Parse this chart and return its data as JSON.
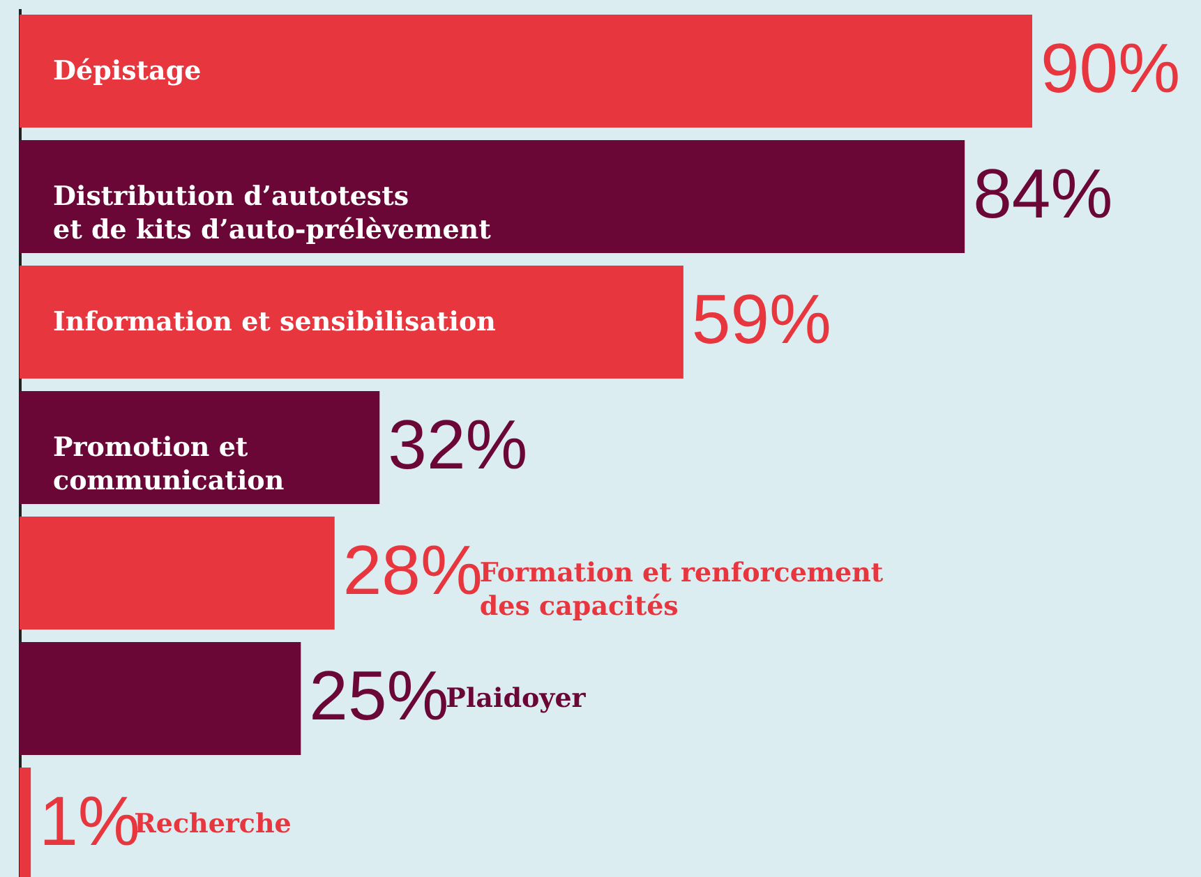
{
  "chart_data": {
    "type": "bar",
    "orientation": "horizontal",
    "categories": [
      "Dépistage",
      "Distribution d’autotests\net de kits d’auto-prélèvement",
      "Information et sensibilisation",
      "Promotion et\ncommunication",
      "Formation et renforcement\ndes capacités",
      "Plaidoyer",
      "Recherche"
    ],
    "values": [
      90,
      84,
      59,
      32,
      28,
      25,
      1
    ],
    "colors": [
      "#e8363f",
      "#6a0737",
      "#e8363f",
      "#6a0737",
      "#e8363f",
      "#6a0737",
      "#e8363f"
    ],
    "value_labels": [
      "90%",
      "84%",
      "59%",
      "32%",
      "28%",
      "25%",
      "1%"
    ],
    "xlim": [
      0,
      105
    ],
    "tick_labels": false,
    "grid": false
  }
}
